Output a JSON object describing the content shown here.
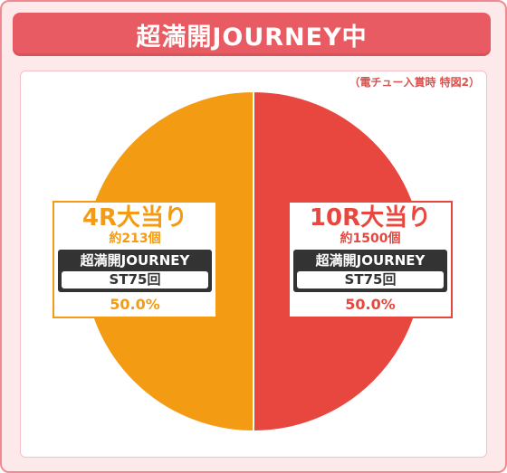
{
  "header": {
    "title": "超満開JOURNEY中"
  },
  "note": "（電チュー入賞時 特図2）",
  "colors": {
    "orange": "#f39b12",
    "red": "#e8473f",
    "frame": "#ef8a93",
    "title_bg": "#e95b62"
  },
  "chart_data": {
    "type": "pie",
    "title": "",
    "slices": [
      {
        "label": "10R大当り",
        "balls": "約1500個",
        "mode": "超満開JOURNEY",
        "st": "ST75回",
        "percent_label": "50.0%",
        "value": 50.0,
        "color": "#e8473f"
      },
      {
        "label": "4R大当り",
        "balls": "約213個",
        "mode": "超満開JOURNEY",
        "st": "ST75回",
        "percent_label": "50.0%",
        "value": 50.0,
        "color": "#f39b12"
      }
    ]
  }
}
